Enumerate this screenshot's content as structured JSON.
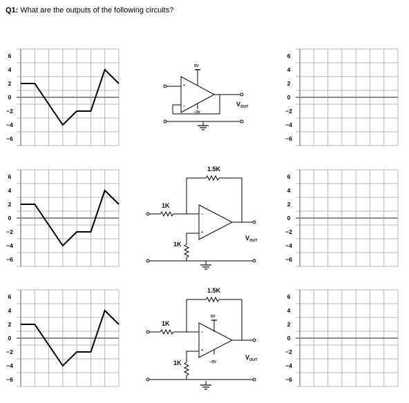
{
  "question": {
    "number": "Q1:",
    "text": "What are the outputs of the following circuits?"
  },
  "graph": {
    "y_ticks": [
      "6",
      "4",
      "2",
      "0",
      "−2",
      "−4",
      "−6"
    ],
    "input_waveform": [
      [
        0,
        2
      ],
      [
        1,
        2
      ],
      [
        3,
        -4
      ],
      [
        4,
        -2
      ],
      [
        5,
        -2
      ],
      [
        6,
        4
      ],
      [
        7,
        2
      ]
    ]
  },
  "circuits": [
    {
      "supply_pos": "5V",
      "supply_neg": "−3V",
      "output": "V",
      "output_sub": "OUT"
    },
    {
      "feedback": "1.5K",
      "input_r": "1K",
      "ground_r": "1K",
      "output": "V",
      "output_sub": "OUT"
    },
    {
      "feedback": "1.5K",
      "input_r": "1K",
      "ground_r": "1K",
      "supply_pos": "5V",
      "supply_neg": "−3V",
      "output": "V",
      "output_sub": "OUT"
    }
  ],
  "colors": {
    "axis": "#8c8c8c",
    "grid": "#b4b4b4",
    "line": "#000000"
  }
}
